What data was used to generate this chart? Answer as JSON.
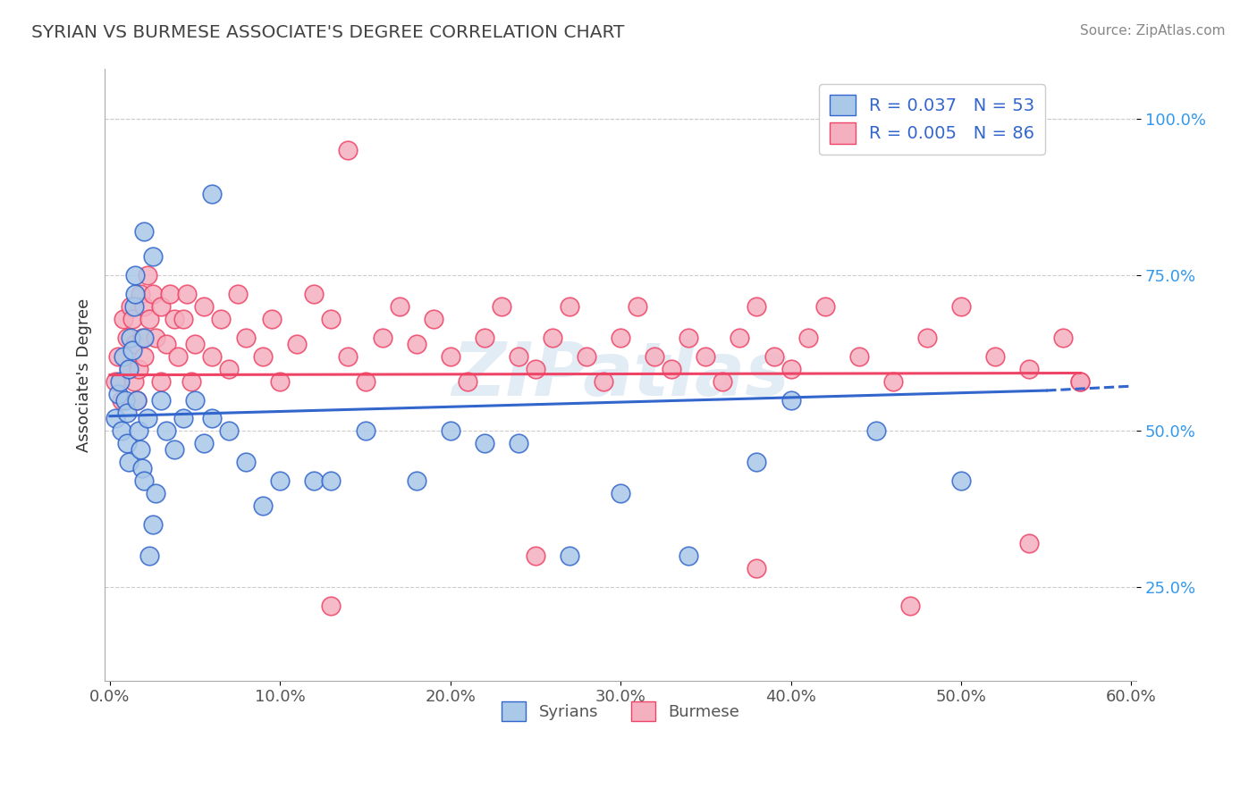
{
  "title": "SYRIAN VS BURMESE ASSOCIATE'S DEGREE CORRELATION CHART",
  "source": "Source: ZipAtlas.com",
  "ylabel": "Associate's Degree",
  "xlim": [
    -0.003,
    0.603
  ],
  "ylim": [
    0.1,
    1.08
  ],
  "xticks": [
    0.0,
    0.1,
    0.2,
    0.3,
    0.4,
    0.5,
    0.6
  ],
  "xtick_labels": [
    "0.0%",
    "10.0%",
    "20.0%",
    "30.0%",
    "40.0%",
    "50.0%",
    "60.0%"
  ],
  "yticks": [
    0.25,
    0.5,
    0.75,
    1.0
  ],
  "ytick_labels": [
    "25.0%",
    "50.0%",
    "75.0%",
    "100.0%"
  ],
  "syrians_color": "#aac8e8",
  "burmese_color": "#f5b0c0",
  "trendline_syrian_color": "#3366cc",
  "trendline_burmese_color": "#ee4466",
  "legend_R_syrian": "R = 0.037",
  "legend_N_syrian": "N = 53",
  "legend_R_burmese": "R = 0.005",
  "legend_N_burmese": "N = 86",
  "watermark": "ZIPatlas",
  "syrian_x": [
    0.003,
    0.005,
    0.006,
    0.007,
    0.008,
    0.009,
    0.01,
    0.01,
    0.011,
    0.011,
    0.012,
    0.013,
    0.014,
    0.015,
    0.015,
    0.016,
    0.017,
    0.018,
    0.019,
    0.02,
    0.02,
    0.022,
    0.023,
    0.025,
    0.027,
    0.03,
    0.033,
    0.038,
    0.043,
    0.05,
    0.055,
    0.06,
    0.07,
    0.08,
    0.09,
    0.1,
    0.12,
    0.13,
    0.15,
    0.18,
    0.2,
    0.22,
    0.24,
    0.27,
    0.3,
    0.34,
    0.38,
    0.4,
    0.45,
    0.5,
    0.02,
    0.025,
    0.06
  ],
  "syrian_y": [
    0.52,
    0.56,
    0.58,
    0.5,
    0.62,
    0.55,
    0.48,
    0.53,
    0.45,
    0.6,
    0.65,
    0.63,
    0.7,
    0.75,
    0.72,
    0.55,
    0.5,
    0.47,
    0.44,
    0.42,
    0.65,
    0.52,
    0.3,
    0.35,
    0.4,
    0.55,
    0.5,
    0.47,
    0.52,
    0.55,
    0.48,
    0.52,
    0.5,
    0.45,
    0.38,
    0.42,
    0.42,
    0.42,
    0.5,
    0.42,
    0.5,
    0.48,
    0.48,
    0.3,
    0.4,
    0.3,
    0.45,
    0.55,
    0.5,
    0.42,
    0.82,
    0.78,
    0.88
  ],
  "burmese_x": [
    0.003,
    0.005,
    0.007,
    0.008,
    0.01,
    0.011,
    0.012,
    0.013,
    0.014,
    0.015,
    0.016,
    0.017,
    0.018,
    0.019,
    0.02,
    0.02,
    0.022,
    0.023,
    0.025,
    0.027,
    0.03,
    0.03,
    0.033,
    0.035,
    0.038,
    0.04,
    0.043,
    0.045,
    0.048,
    0.05,
    0.055,
    0.06,
    0.065,
    0.07,
    0.075,
    0.08,
    0.09,
    0.095,
    0.1,
    0.11,
    0.12,
    0.13,
    0.14,
    0.15,
    0.16,
    0.17,
    0.18,
    0.19,
    0.2,
    0.21,
    0.22,
    0.23,
    0.24,
    0.25,
    0.26,
    0.27,
    0.28,
    0.29,
    0.3,
    0.31,
    0.32,
    0.33,
    0.34,
    0.35,
    0.36,
    0.37,
    0.38,
    0.39,
    0.4,
    0.41,
    0.42,
    0.44,
    0.46,
    0.48,
    0.5,
    0.52,
    0.54,
    0.56,
    0.13,
    0.25,
    0.38,
    0.47,
    0.54,
    0.57,
    0.14,
    0.57
  ],
  "burmese_y": [
    0.58,
    0.62,
    0.55,
    0.68,
    0.65,
    0.6,
    0.7,
    0.68,
    0.58,
    0.64,
    0.55,
    0.6,
    0.72,
    0.65,
    0.7,
    0.62,
    0.75,
    0.68,
    0.72,
    0.65,
    0.7,
    0.58,
    0.64,
    0.72,
    0.68,
    0.62,
    0.68,
    0.72,
    0.58,
    0.64,
    0.7,
    0.62,
    0.68,
    0.6,
    0.72,
    0.65,
    0.62,
    0.68,
    0.58,
    0.64,
    0.72,
    0.68,
    0.62,
    0.58,
    0.65,
    0.7,
    0.64,
    0.68,
    0.62,
    0.58,
    0.65,
    0.7,
    0.62,
    0.6,
    0.65,
    0.7,
    0.62,
    0.58,
    0.65,
    0.7,
    0.62,
    0.6,
    0.65,
    0.62,
    0.58,
    0.65,
    0.7,
    0.62,
    0.6,
    0.65,
    0.7,
    0.62,
    0.58,
    0.65,
    0.7,
    0.62,
    0.6,
    0.65,
    0.22,
    0.3,
    0.28,
    0.22,
    0.32,
    0.58,
    0.95,
    0.58
  ],
  "syrian_trendline_x0": 0.0,
  "syrian_trendline_x1": 0.55,
  "syrian_trendline_y0": 0.524,
  "syrian_trendline_y1": 0.565,
  "syrian_trendline_dashed_x0": 0.55,
  "syrian_trendline_dashed_x1": 0.6,
  "syrian_trendline_dashed_y0": 0.565,
  "syrian_trendline_dashed_y1": 0.572,
  "burmese_trendline_x0": 0.0,
  "burmese_trendline_x1": 0.57,
  "burmese_trendline_y0": 0.59,
  "burmese_trendline_y1": 0.593
}
